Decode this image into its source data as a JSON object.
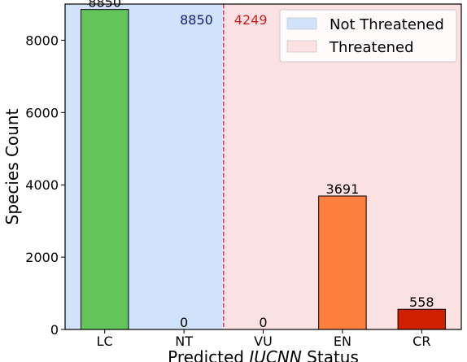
{
  "chart_data": {
    "type": "bar",
    "categories": [
      "LC",
      "NT",
      "VU",
      "EN",
      "CR"
    ],
    "values": [
      8850,
      0,
      0,
      3691,
      558
    ],
    "bar_colors": [
      "#62c45a",
      "#b3d96c",
      "#ffd36b",
      "#ff7f3f",
      "#cf2000"
    ],
    "ylim": [
      0,
      9000
    ],
    "yticks": [
      0,
      2000,
      4000,
      6000,
      8000
    ],
    "xlabel_parts": [
      "Predicted ",
      "IUCNN",
      " Status"
    ],
    "ylabel": "Species Count",
    "regions": [
      {
        "name": "Not Threatened",
        "from": "LC",
        "to": "NT",
        "color": "#d1e3fb",
        "total": "8850",
        "total_color": "#10207f"
      },
      {
        "name": "Threatened",
        "from": "VU",
        "to": "CR",
        "color": "#fbe1e1",
        "total": "4249",
        "total_color": "#cc1f24"
      }
    ],
    "divider": {
      "between": [
        "NT",
        "VU"
      ],
      "color": "#d6273a",
      "style": "dashed"
    },
    "legend": {
      "position": "top-right"
    },
    "grid": false
  }
}
